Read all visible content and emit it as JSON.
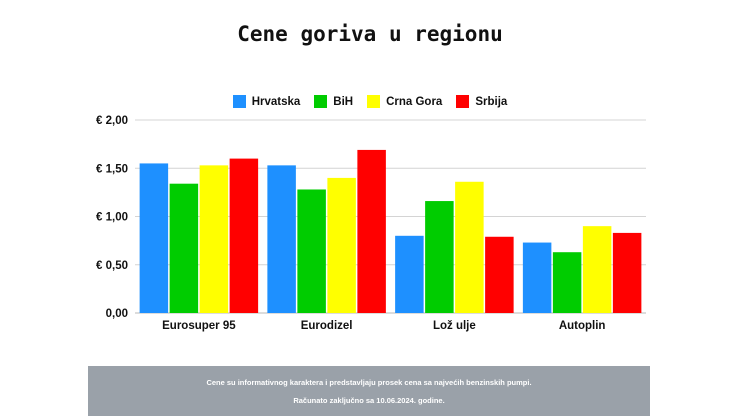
{
  "chart_data": {
    "type": "bar",
    "title": "Cene goriva u regionu",
    "categories": [
      "Eurosuper 95",
      "Eurodizel",
      "Lož ulje",
      "Autoplin"
    ],
    "series": [
      {
        "name": "Hrvatska",
        "color": "#1e90ff",
        "values": [
          1.55,
          1.53,
          0.8,
          0.73
        ]
      },
      {
        "name": "BiH",
        "color": "#00cc00",
        "values": [
          1.34,
          1.28,
          1.16,
          0.63
        ]
      },
      {
        "name": "Crna Gora",
        "color": "#ffff00",
        "values": [
          1.53,
          1.4,
          1.36,
          0.9
        ]
      },
      {
        "name": "Srbija",
        "color": "#ff0000",
        "values": [
          1.6,
          1.69,
          0.79,
          0.83
        ]
      }
    ],
    "ylim": [
      0,
      2.0
    ],
    "yticks": [
      {
        "value": 0,
        "label": "0,00"
      },
      {
        "value": 0.5,
        "label": "€ 0,50"
      },
      {
        "value": 1.0,
        "label": "€ 1,00"
      },
      {
        "value": 1.5,
        "label": "€ 1,50"
      },
      {
        "value": 2.0,
        "label": "€ 2,00"
      }
    ],
    "grid": true,
    "legend_position": "top-center"
  },
  "footer": {
    "line1": "Cene su informativnog karaktera i predstavljaju prosek cena sa najvećih benzinskih pumpi.",
    "line2": "Računato zaključno sa 10.06.2024. godine."
  }
}
